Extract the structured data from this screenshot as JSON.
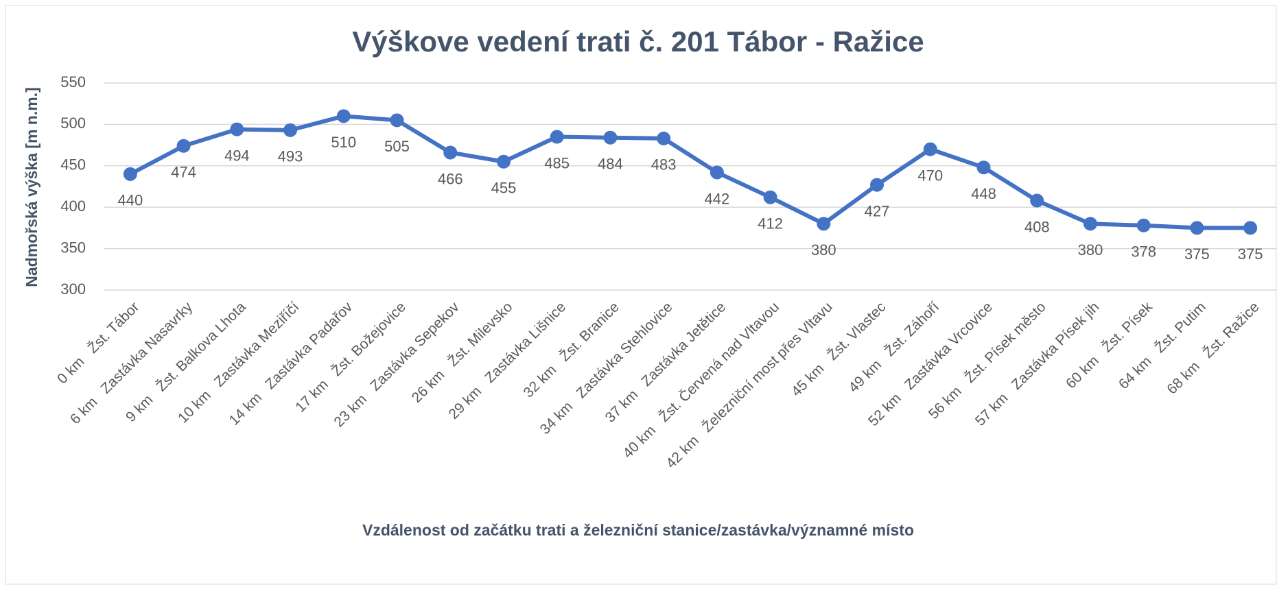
{
  "chart_data": {
    "type": "line",
    "title": "Výškove vedení trati č. 201 Tábor - Ražice",
    "x_label": "Vzdálenost od začátku trati a železniční stanice/zastávka/významné místo",
    "y_label": "Nadmořská výška [m n.m.]",
    "categories": [
      "0 km   Žst. Tábor",
      "6 km   Zastávka Nasavrky",
      "9 km   Žst. Balkova Lhota",
      "10 km   Zastávka Meziříčí",
      "14 km   Zastávka Padařov",
      "17 km   Žst. Božejovice",
      "23 km   Zastávka Sepekov",
      "26 km   Žst. Milevsko",
      "29 km   Zastávka Lišnice",
      "32 km   Žst. Branice",
      "34 km   Zastávka Stehlovice",
      "37 km   Zastávka Jetětice",
      "40 km   Žst. Červená nad Vltavou",
      "42 km   Železniční most přes Vltavu",
      "45 km   Žst. Vlastec",
      "49 km   Žst. Záhoří",
      "52 km   Zastávka Vrcovice",
      "56 km   Žst. Písek město",
      "57 km   Zastávka Písek jih",
      "60 km   Žst. Písek",
      "64 km   Žst. Putim",
      "68 km   Žst. Ražice"
    ],
    "series": [
      {
        "name": "Nadmořská výška",
        "color": "#4472c4",
        "values": [
          440,
          474,
          494,
          493,
          510,
          505,
          466,
          455,
          485,
          484,
          483,
          442,
          412,
          380,
          427,
          470,
          448,
          408,
          380,
          378,
          375,
          375
        ]
      }
    ],
    "ylim": [
      300,
      550
    ],
    "yticks": [
      300,
      350,
      400,
      450,
      500,
      550
    ],
    "grid": true
  }
}
